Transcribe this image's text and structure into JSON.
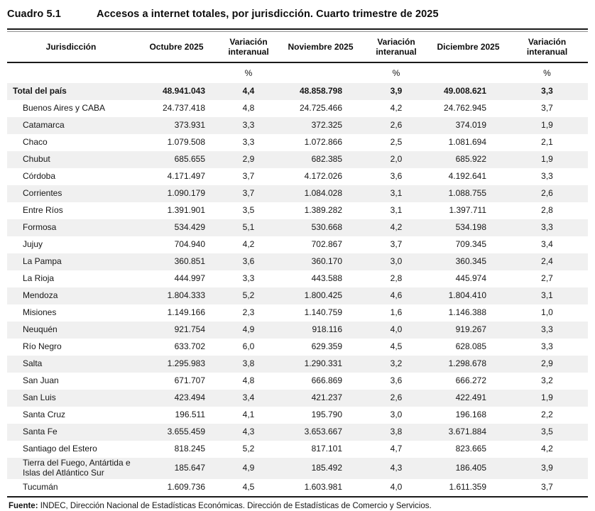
{
  "title": {
    "number": "Cuadro 5.1",
    "text": "Accesos a internet totales, por jurisdicción. Cuarto trimestre de 2025"
  },
  "table": {
    "columns": [
      "Jurisdicción",
      "Octubre 2025",
      "Variación interanual",
      "Noviembre 2025",
      "Variación interanual",
      "Diciembre 2025",
      "Variación interanual"
    ],
    "unit_row": {
      "pct1": "%",
      "pct2": "%",
      "pct3": "%"
    },
    "rows": [
      {
        "jurisdiction": "Total del país",
        "total": true,
        "values": [
          "48.941.043",
          "4,4",
          "48.858.798",
          "3,9",
          "49.008.621",
          "3,3"
        ]
      },
      {
        "jurisdiction": "Buenos Aires y CABA",
        "total": false,
        "values": [
          "24.737.418",
          "4,8",
          "24.725.466",
          "4,2",
          "24.762.945",
          "3,7"
        ]
      },
      {
        "jurisdiction": "Catamarca",
        "total": false,
        "values": [
          "373.931",
          "3,3",
          "372.325",
          "2,6",
          "374.019",
          "1,9"
        ]
      },
      {
        "jurisdiction": "Chaco",
        "total": false,
        "values": [
          "1.079.508",
          "3,3",
          "1.072.866",
          "2,5",
          "1.081.694",
          "2,1"
        ]
      },
      {
        "jurisdiction": "Chubut",
        "total": false,
        "values": [
          "685.655",
          "2,9",
          "682.385",
          "2,0",
          "685.922",
          "1,9"
        ]
      },
      {
        "jurisdiction": "Córdoba",
        "total": false,
        "values": [
          "4.171.497",
          "3,7",
          "4.172.026",
          "3,6",
          "4.192.641",
          "3,3"
        ]
      },
      {
        "jurisdiction": "Corrientes",
        "total": false,
        "values": [
          "1.090.179",
          "3,7",
          "1.084.028",
          "3,1",
          "1.088.755",
          "2,6"
        ]
      },
      {
        "jurisdiction": "Entre Ríos",
        "total": false,
        "values": [
          "1.391.901",
          "3,5",
          "1.389.282",
          "3,1",
          "1.397.711",
          "2,8"
        ]
      },
      {
        "jurisdiction": "Formosa",
        "total": false,
        "values": [
          "534.429",
          "5,1",
          "530.668",
          "4,2",
          "534.198",
          "3,3"
        ]
      },
      {
        "jurisdiction": "Jujuy",
        "total": false,
        "values": [
          "704.940",
          "4,2",
          "702.867",
          "3,7",
          "709.345",
          "3,4"
        ]
      },
      {
        "jurisdiction": "La Pampa",
        "total": false,
        "values": [
          "360.851",
          "3,6",
          "360.170",
          "3,0",
          "360.345",
          "2,4"
        ]
      },
      {
        "jurisdiction": "La Rioja",
        "total": false,
        "values": [
          "444.997",
          "3,3",
          "443.588",
          "2,8",
          "445.974",
          "2,7"
        ]
      },
      {
        "jurisdiction": "Mendoza",
        "total": false,
        "values": [
          "1.804.333",
          "5,2",
          "1.800.425",
          "4,6",
          "1.804.410",
          "3,1"
        ]
      },
      {
        "jurisdiction": "Misiones",
        "total": false,
        "values": [
          "1.149.166",
          "2,3",
          "1.140.759",
          "1,6",
          "1.146.388",
          "1,0"
        ]
      },
      {
        "jurisdiction": "Neuquén",
        "total": false,
        "values": [
          "921.754",
          "4,9",
          "918.116",
          "4,0",
          "919.267",
          "3,3"
        ]
      },
      {
        "jurisdiction": "Río Negro",
        "total": false,
        "values": [
          "633.702",
          "6,0",
          "629.359",
          "4,5",
          "628.085",
          "3,3"
        ]
      },
      {
        "jurisdiction": "Salta",
        "total": false,
        "values": [
          "1.295.983",
          "3,8",
          "1.290.331",
          "3,2",
          "1.298.678",
          "2,9"
        ]
      },
      {
        "jurisdiction": "San Juan",
        "total": false,
        "values": [
          "671.707",
          "4,8",
          "666.869",
          "3,6",
          "666.272",
          "3,2"
        ]
      },
      {
        "jurisdiction": "San Luis",
        "total": false,
        "values": [
          "423.494",
          "3,4",
          "421.237",
          "2,6",
          "422.491",
          "1,9"
        ]
      },
      {
        "jurisdiction": "Santa Cruz",
        "total": false,
        "values": [
          "196.511",
          "4,1",
          "195.790",
          "3,0",
          "196.168",
          "2,2"
        ]
      },
      {
        "jurisdiction": "Santa Fe",
        "total": false,
        "values": [
          "3.655.459",
          "4,3",
          "3.653.667",
          "3,8",
          "3.671.884",
          "3,5"
        ]
      },
      {
        "jurisdiction": "Santiago del Estero",
        "total": false,
        "values": [
          "818.245",
          "5,2",
          "817.101",
          "4,7",
          "823.665",
          "4,2"
        ]
      },
      {
        "jurisdiction": "Tierra del Fuego, Antártida e Islas del Atlántico Sur",
        "total": false,
        "values": [
          "185.647",
          "4,9",
          "185.492",
          "4,3",
          "186.405",
          "3,9"
        ]
      },
      {
        "jurisdiction": "Tucumán",
        "total": false,
        "values": [
          "1.609.736",
          "4,5",
          "1.603.981",
          "4,0",
          "1.611.359",
          "3,7"
        ]
      }
    ]
  },
  "footer": {
    "label": "Fuente:",
    "text": " INDEC, Dirección Nacional de Estadísticas Económicas. Dirección de Estadísticas de Comercio y Servicios."
  },
  "colors": {
    "row_shade": "#f0f0f0",
    "rule": "#1a1a1a",
    "text": "#141414"
  }
}
